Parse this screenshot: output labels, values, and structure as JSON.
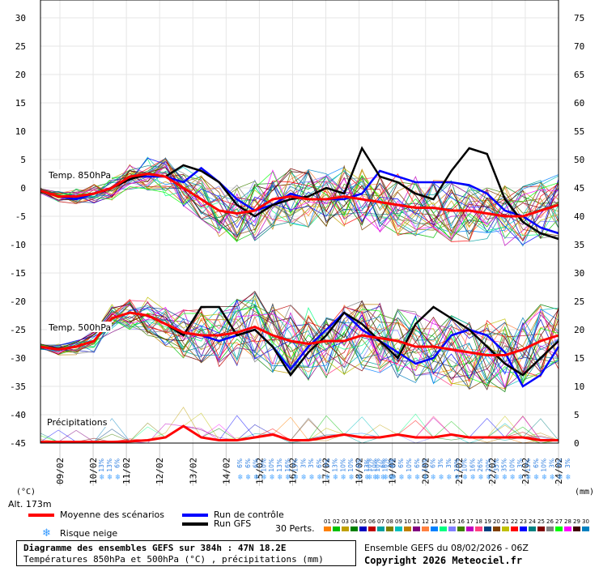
{
  "chart_data": {
    "type": "line",
    "title": "Diagramme des ensembles GEFS sur 384h : 47N 18.2E",
    "subtitle": "Températures 850hPa et 500hPa (°C) , précipitations (mm)",
    "left_axis": {
      "unit": "(°C)",
      "ticks": [
        "30",
        "25",
        "20",
        "15",
        "10",
        "5",
        "0",
        "-5",
        "-10",
        "-15",
        "-20",
        "-25",
        "-30",
        "-35",
        "-40",
        "-45"
      ],
      "ylim": [
        -45,
        30
      ]
    },
    "right_axis": {
      "unit": "(mm)",
      "ticks": [
        "75",
        "70",
        "65",
        "60",
        "55",
        "50",
        "45",
        "40",
        "35",
        "30",
        "25",
        "20",
        "15",
        "10",
        "5",
        "0"
      ],
      "ylim": [
        0,
        75
      ]
    },
    "x_ticks": [
      "09/02",
      "10/02",
      "11/02",
      "12/02",
      "13/02",
      "14/02",
      "15/02",
      "16/02",
      "17/02",
      "18/02",
      "19/02",
      "20/02",
      "21/02",
      "22/02",
      "23/02",
      "24/02"
    ],
    "altitude": "Alt. 173m",
    "section_labels": {
      "t850": "Temp. 850hPa",
      "t500": "Temp. 500hPa",
      "precip": "Précipitations"
    },
    "series": [
      {
        "name": "Moyenne des scénarios",
        "color": "#ff0000",
        "t850": [
          -0.5,
          -1.5,
          -1.5,
          -1,
          0,
          2,
          2.5,
          2,
          0,
          -2,
          -4,
          -4.5,
          -4,
          -2,
          -1.5,
          -2,
          -2,
          -1.5,
          -2,
          -2.5,
          -3,
          -3.5,
          -3.5,
          -4,
          -4,
          -4.5,
          -5,
          -5,
          -4,
          -3
        ],
        "t500": [
          -28,
          -28.5,
          -28,
          -27,
          -23,
          -22,
          -22.5,
          -24,
          -25.5,
          -26,
          -26,
          -25.5,
          -24.5,
          -26,
          -27,
          -27.5,
          -27,
          -27,
          -26,
          -26.5,
          -27,
          -28,
          -28,
          -28.5,
          -29,
          -29.5,
          -29.5,
          -28.5,
          -27,
          -26
        ],
        "precip": [
          0.2,
          0.2,
          0.2,
          0.2,
          0.2,
          0.3,
          0.5,
          1,
          3,
          1,
          0.5,
          0.5,
          1,
          1.5,
          0.5,
          0.5,
          1,
          1.5,
          1,
          1,
          1.5,
          1,
          1,
          1.5,
          1,
          1,
          1,
          1,
          0.5,
          0.5
        ]
      },
      {
        "name": "Run de contrôle",
        "color": "#0000ff",
        "t850": [
          -0.5,
          -1.5,
          -2,
          -1,
          0,
          2,
          2,
          2,
          1,
          3.5,
          1,
          -2,
          -4,
          -3,
          -1,
          -2,
          -2,
          -2,
          -1,
          3,
          2,
          1,
          1,
          1,
          0.5,
          -1,
          -4,
          -5,
          -7,
          -8
        ],
        "t500": [
          -28,
          -28.5,
          -28,
          -27,
          -23,
          -22,
          -22.5,
          -24,
          -25.5,
          -26,
          -27,
          -26,
          -25,
          -28,
          -32,
          -28,
          -25,
          -22,
          -25,
          -27,
          -29,
          -31,
          -30,
          -26,
          -25,
          -26,
          -29,
          -35,
          -33,
          -28
        ]
      },
      {
        "name": "Run GFS",
        "color": "#000000",
        "t850": [
          -0.5,
          -1.5,
          -1.5,
          -1,
          0,
          1.5,
          2.5,
          2,
          4,
          3,
          1,
          -3,
          -5,
          -3,
          -2,
          -1.5,
          0,
          -1,
          7,
          2,
          1,
          -1,
          -2,
          3,
          7,
          6,
          -2,
          -6,
          -8,
          -9
        ],
        "t500": [
          -28,
          -28.5,
          -28,
          -27,
          -23,
          -22,
          -22.5,
          -24,
          -26,
          -21,
          -21,
          -26,
          -25,
          -28,
          -33,
          -29,
          -26,
          -22,
          -24,
          -27,
          -30,
          -24,
          -21,
          -23,
          -25,
          -28,
          -31,
          -33,
          -30,
          -27
        ]
      }
    ],
    "ensemble_members": 30,
    "snow_risk": {
      "group1": [
        "13%",
        "13%",
        "6%"
      ],
      "group2": [
        "6%",
        "6%",
        "6%",
        "10%",
        "10%",
        "13%",
        "16%",
        "13%",
        "3%",
        "3%",
        "6%",
        "3%",
        "13%",
        "10%",
        "10%",
        "6%",
        "13%",
        "10%",
        "6%",
        "3%"
      ],
      "group3": [
        "10%",
        "10%",
        "16%",
        "6%",
        "6%",
        "10%",
        "6%",
        "13%",
        "6%",
        "3%",
        "3%",
        "10%",
        "10%",
        "16%",
        "26%",
        "20%",
        "35%",
        "35%",
        "10%",
        "3%",
        "13%",
        "6%",
        "10%",
        "3%",
        "3%",
        "3%"
      ]
    }
  },
  "legend": {
    "mean": "Moyenne des scénarios",
    "control": "Run de contrôle",
    "gfs": "Run GFS",
    "snow": "Risque neige",
    "perts": "30 Perts.",
    "pert_numbers": [
      "01",
      "02",
      "03",
      "04",
      "05",
      "06",
      "07",
      "08",
      "09",
      "10",
      "11",
      "12",
      "13",
      "14",
      "15",
      "16",
      "17",
      "18",
      "19",
      "20",
      "21",
      "22",
      "23",
      "24",
      "25",
      "26",
      "27",
      "28",
      "29",
      "30"
    ],
    "pert_colors": [
      "#ff8000",
      "#00c000",
      "#c0a000",
      "#008000",
      "#0000c0",
      "#c00000",
      "#00a0a0",
      "#808000",
      "#00c0c0",
      "#c08000",
      "#800080",
      "#ff8040",
      "#0080ff",
      "#00ff80",
      "#8080ff",
      "#408000",
      "#c000c0",
      "#ff4080",
      "#004080",
      "#804000",
      "#c0c000",
      "#ff0000",
      "#0000ff",
      "#008080",
      "#800000",
      "#808080",
      "#00ff00",
      "#ff00ff",
      "#400000",
      "#0080c0"
    ]
  },
  "footer": {
    "run": "Ensemble GEFS du 08/02/2026 - 06Z",
    "copyright": "Copyright 2026 Meteociel.fr"
  }
}
